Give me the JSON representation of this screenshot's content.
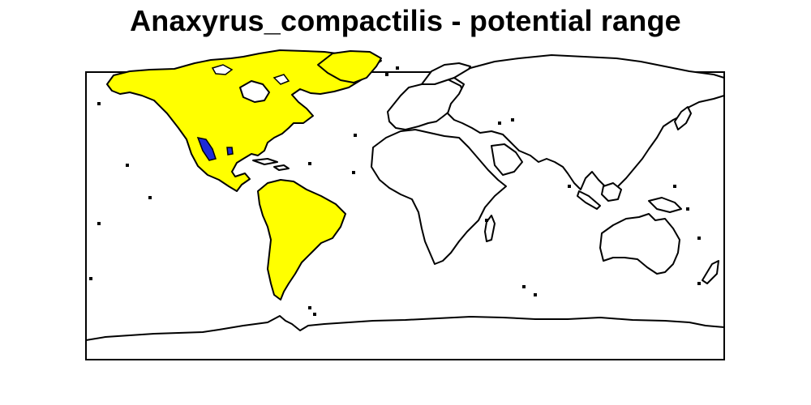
{
  "map": {
    "title": "Anaxyrus_compactilis - potential range",
    "colors": {
      "potential_range": "#ffff00",
      "observed_occurrence": "#1d2bd8",
      "outside_range": "#ffffff",
      "outline": "#000000"
    }
  }
}
